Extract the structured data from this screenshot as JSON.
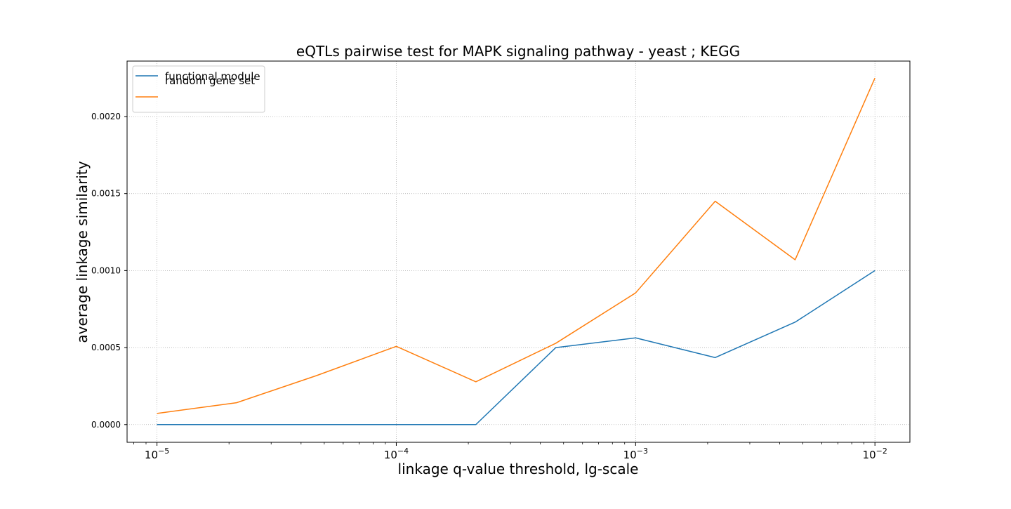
{
  "chart_data": {
    "type": "line",
    "title": "eQTLs pairwise test for MAPK signaling pathway - yeast ; KEGG",
    "xlabel": "linkage q-value threshold, lg-scale",
    "ylabel": "average linkage similarity",
    "x_scale": "log10",
    "xlim": [
      7.5e-06,
      0.014
    ],
    "ylim": [
      -0.000115,
      0.00236
    ],
    "x_ticks": [
      {
        "value": 1e-05,
        "base": "10",
        "exp": "−5"
      },
      {
        "value": 0.0001,
        "base": "10",
        "exp": "−4"
      },
      {
        "value": 0.001,
        "base": "10",
        "exp": "−3"
      },
      {
        "value": 0.01,
        "base": "10",
        "exp": "−2"
      }
    ],
    "y_ticks": [
      {
        "value": 0.0,
        "label": "0.0000"
      },
      {
        "value": 0.0005,
        "label": "0.0005"
      },
      {
        "value": 0.001,
        "label": "0.0010"
      },
      {
        "value": 0.0015,
        "label": "0.0015"
      },
      {
        "value": 0.002,
        "label": "0.0020"
      }
    ],
    "grid": true,
    "legend_position": "top-left",
    "x": [
      1e-05,
      2.15e-05,
      4.64e-05,
      0.0001,
      0.000215,
      0.000464,
      0.001,
      0.00215,
      0.00464,
      0.01
    ],
    "series": [
      {
        "name": "functional module",
        "color": "#1f77b4",
        "values": [
          0.0,
          0.0,
          0.0,
          0.0,
          0.0,
          0.0005,
          0.000563,
          0.000435,
          0.000665,
          0.001
        ]
      },
      {
        "name": "random gene set",
        "color": "#ff7f0e",
        "values": [
          7.25e-05,
          0.000142,
          0.000318,
          0.000508,
          0.000278,
          0.000528,
          0.000855,
          0.00145,
          0.00107,
          0.00225
        ]
      }
    ]
  }
}
